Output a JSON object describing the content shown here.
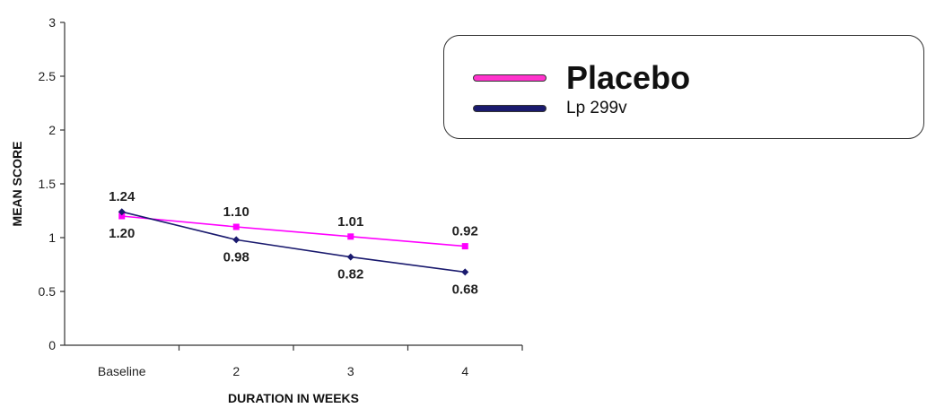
{
  "chart_data": {
    "type": "line",
    "categories": [
      "Baseline",
      "2",
      "3",
      "4"
    ],
    "series": [
      {
        "name": "Placebo",
        "values": [
          1.2,
          1.1,
          1.01,
          0.92
        ],
        "labels": [
          "1.20",
          "1.10",
          "1.01",
          "0.92"
        ],
        "color": "#ff00ff",
        "marker": "square"
      },
      {
        "name": "Lp 299v",
        "values": [
          1.24,
          0.98,
          0.82,
          0.68
        ],
        "labels": [
          "1.24",
          "0.98",
          "0.82",
          "0.68"
        ],
        "color": "#1a1a6e",
        "marker": "diamond"
      }
    ],
    "xlabel": "DURATION IN WEEKS",
    "ylabel": "MEAN SCORE",
    "ylim": [
      0,
      3
    ],
    "yticks": [
      "0",
      "0.5",
      "1",
      "1.5",
      "2",
      "2.5",
      "3"
    ],
    "grid": false,
    "legend_position": "top-right"
  }
}
